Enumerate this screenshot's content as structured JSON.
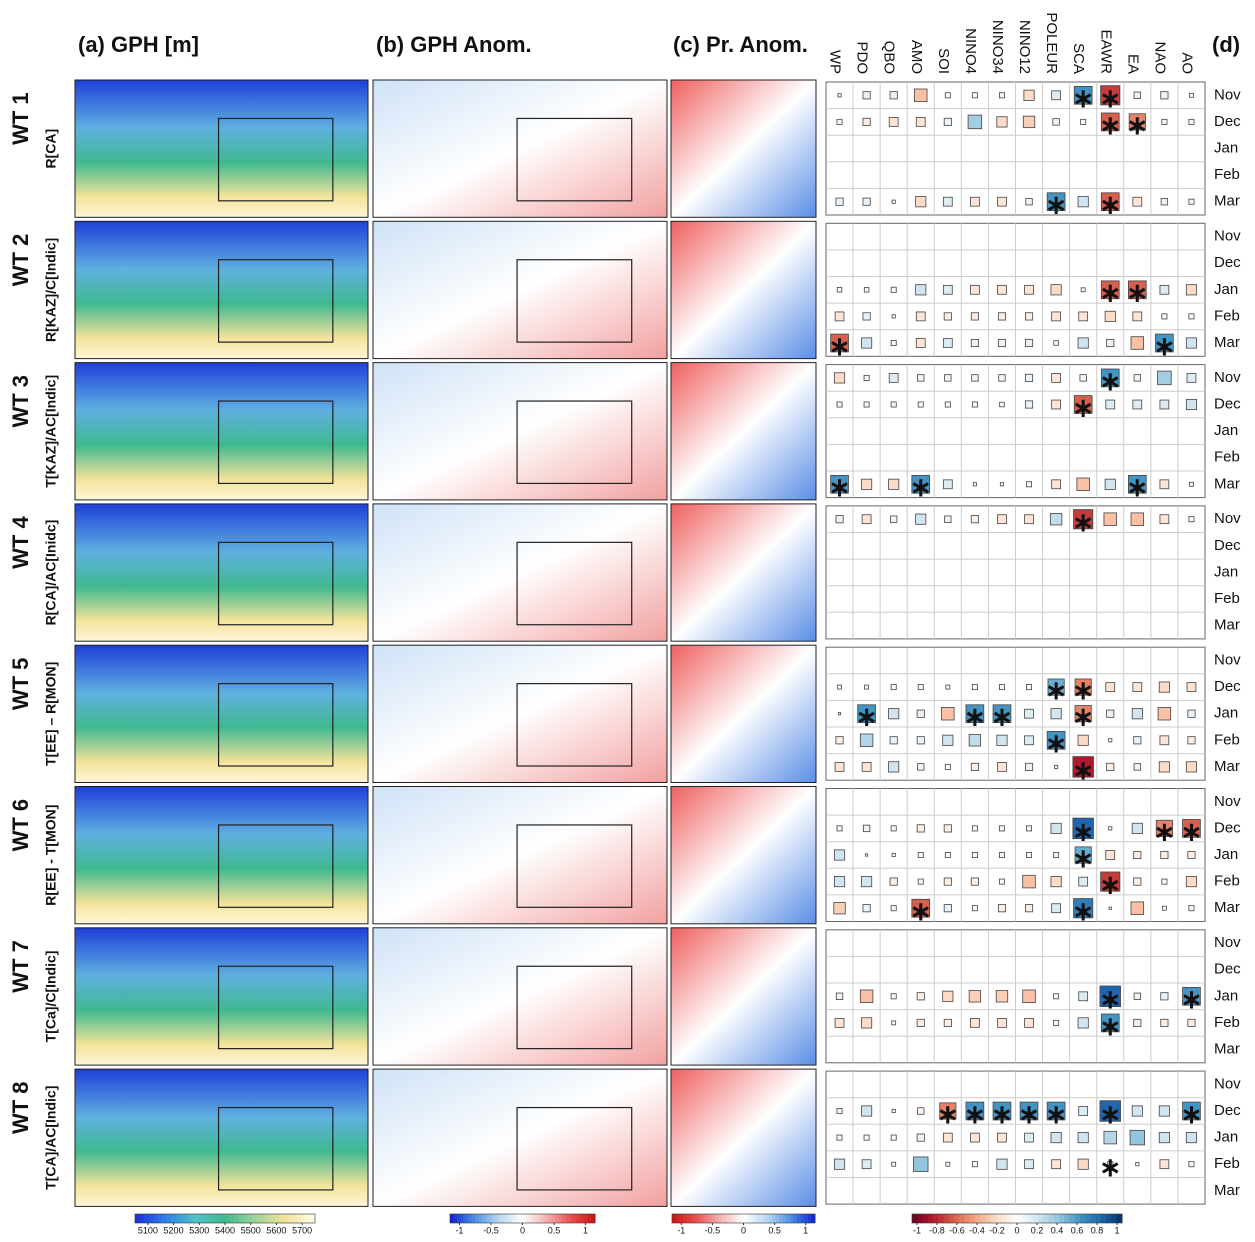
{
  "chart_data": {
    "type": "correlation-matrix",
    "panel_titles": [
      "(a) GPH [m]",
      "(b) GPH Anom.",
      "(c) Pr. Anom.",
      "(d)"
    ],
    "indices": [
      "WP",
      "PDO",
      "QBO",
      "AMO",
      "SOI",
      "NINO4",
      "NINO34",
      "NINO12",
      "POLEUR",
      "SCA",
      "EAWR",
      "EA",
      "NAO",
      "AO"
    ],
    "months": [
      "Nov",
      "Dec",
      "Jan",
      "Feb",
      "Mar"
    ],
    "weather_types": [
      {
        "name": "WT 1",
        "label": "R[CA]",
        "values": [
          [
            0.02,
            0.1,
            0.1,
            -0.3,
            0.05,
            0.05,
            0.05,
            -0.2,
            0.15,
            0.6,
            -0.7,
            0.08,
            0.1,
            0.03
          ],
          [
            0.05,
            -0.1,
            -0.15,
            -0.15,
            0.1,
            0.35,
            -0.2,
            -0.25,
            0.08,
            0.05,
            -0.6,
            -0.5,
            0.05,
            0.05
          ],
          null,
          null,
          [
            0.1,
            0.1,
            0.02,
            -0.2,
            0.15,
            -0.15,
            -0.15,
            0.08,
            0.6,
            0.2,
            -0.6,
            -0.15,
            0.08,
            0.05
          ]
        ],
        "significant": [
          [
            9,
            10
          ],
          [
            10,
            11
          ],
          [],
          [],
          [
            8,
            10
          ]
        ]
      },
      {
        "name": "WT 2",
        "label": "R[KAZ]/C[Indic]",
        "values": [
          null,
          null,
          [
            0.04,
            0.04,
            0.05,
            0.2,
            0.15,
            -0.15,
            -0.15,
            -0.15,
            -0.2,
            0.03,
            -0.6,
            -0.6,
            0.15,
            -0.2
          ],
          [
            -0.15,
            0.1,
            0.02,
            -0.15,
            -0.1,
            -0.1,
            -0.1,
            -0.1,
            -0.15,
            -0.15,
            -0.2,
            -0.15,
            0.05,
            0.05
          ],
          [
            -0.6,
            0.2,
            0.05,
            -0.15,
            0.15,
            0.1,
            0.1,
            0.1,
            0.04,
            0.2,
            0.1,
            -0.3,
            0.6,
            0.2
          ]
        ],
        "significant": [
          [],
          [],
          [
            10,
            11
          ],
          [],
          [
            0,
            12
          ]
        ]
      },
      {
        "name": "WT 3",
        "label": "T[KAZ]/AC[Indic]",
        "values": [
          [
            -0.2,
            0.05,
            0.15,
            0.08,
            0.08,
            0.08,
            0.08,
            0.1,
            -0.15,
            0.08,
            0.6,
            0.08,
            0.35,
            0.15
          ],
          [
            0.05,
            0.05,
            0.05,
            0.05,
            0.05,
            0.05,
            0.04,
            0.1,
            -0.15,
            -0.6,
            0.15,
            0.15,
            0.15,
            0.2
          ],
          null,
          null,
          [
            0.6,
            -0.2,
            -0.2,
            0.6,
            0.15,
            0.02,
            0.02,
            0.05,
            -0.15,
            -0.3,
            0.2,
            0.6,
            -0.15,
            0.03
          ]
        ],
        "significant": [
          [
            10
          ],
          [
            9
          ],
          [],
          [],
          [
            0,
            3,
            11
          ]
        ]
      },
      {
        "name": "WT 4",
        "label": "R[CA]/AC[Inidc]",
        "values": [
          [
            0.1,
            -0.15,
            0.08,
            0.2,
            0.08,
            -0.1,
            -0.15,
            -0.15,
            0.25,
            -0.7,
            -0.3,
            -0.3,
            -0.15,
            0.05
          ],
          null,
          null,
          null,
          null
        ],
        "significant": [
          [
            9
          ],
          [],
          [],
          [],
          []
        ]
      },
      {
        "name": "WT 5",
        "label": "T[EE] – R[MON]",
        "values": [
          null,
          [
            0.03,
            0.03,
            0.05,
            0.05,
            0.03,
            0.05,
            0.05,
            0.05,
            0.5,
            -0.5,
            -0.15,
            -0.15,
            -0.2,
            -0.15
          ],
          [
            0.01,
            0.6,
            0.2,
            0.1,
            -0.3,
            0.6,
            0.6,
            0.15,
            0.2,
            -0.5,
            0.1,
            0.2,
            -0.3,
            0.1
          ],
          [
            -0.1,
            0.3,
            0.1,
            0.1,
            0.2,
            0.25,
            0.2,
            0.15,
            0.6,
            -0.2,
            0.02,
            0.1,
            -0.15,
            -0.1
          ],
          [
            -0.15,
            -0.15,
            0.2,
            0.08,
            0.05,
            -0.1,
            -0.15,
            0.1,
            0.02,
            -0.8,
            -0.1,
            0.08,
            -0.2,
            -0.2
          ]
        ],
        "significant": [
          [],
          [
            8,
            9
          ],
          [
            1,
            5,
            6,
            9
          ],
          [
            8
          ],
          [
            9
          ]
        ]
      },
      {
        "name": "WT 6",
        "label": "R[EE] - T[MON]",
        "values": [
          null,
          [
            0.05,
            0.08,
            0.05,
            -0.1,
            -0.1,
            0.05,
            0.05,
            0.05,
            0.2,
            0.8,
            0.02,
            0.2,
            -0.5,
            -0.6
          ],
          [
            0.2,
            0.01,
            0.02,
            0.05,
            0.05,
            0.05,
            0.05,
            0.05,
            0.05,
            0.5,
            -0.15,
            -0.1,
            -0.1,
            -0.1
          ],
          [
            0.2,
            0.2,
            -0.1,
            0.05,
            -0.1,
            -0.1,
            0.05,
            -0.3,
            -0.2,
            0.15,
            -0.7,
            -0.1,
            0.05,
            -0.2
          ],
          [
            -0.25,
            0.1,
            0.05,
            -0.6,
            0.1,
            0.05,
            -0.1,
            -0.1,
            0.15,
            0.7,
            0.01,
            -0.3,
            0.03,
            0.05
          ]
        ],
        "significant": [
          [],
          [
            9,
            12,
            13
          ],
          [
            9
          ],
          [
            10
          ],
          [
            3,
            9
          ]
        ]
      },
      {
        "name": "WT 7",
        "label": "T[Ca]/C[Indic]",
        "values": [
          null,
          null,
          [
            0.08,
            -0.3,
            0.05,
            -0.1,
            -0.2,
            -0.25,
            -0.25,
            -0.3,
            0.05,
            0.15,
            0.8,
            0.08,
            0.1,
            0.6
          ],
          [
            -0.15,
            -0.2,
            0.03,
            -0.1,
            -0.1,
            -0.15,
            -0.15,
            -0.15,
            0.05,
            0.2,
            0.6,
            0.1,
            -0.1,
            -0.1
          ],
          null
        ],
        "significant": [
          [],
          [],
          [
            10,
            13
          ],
          [
            10
          ],
          []
        ]
      },
      {
        "name": "WT 8",
        "label": "T[CA]/AC[Indic]",
        "values": [
          null,
          [
            0.05,
            0.2,
            0.02,
            -0.08,
            -0.5,
            0.6,
            0.6,
            0.6,
            0.6,
            0.15,
            0.8,
            0.2,
            0.2,
            0.6
          ],
          [
            0.05,
            0.05,
            0.05,
            0.1,
            -0.15,
            -0.15,
            -0.15,
            0.15,
            0.2,
            0.2,
            0.3,
            0.4,
            0.2,
            0.2
          ],
          [
            0.2,
            0.15,
            0.03,
            0.4,
            0.03,
            0.05,
            0.2,
            0.15,
            -0.15,
            -0.2,
            0.05,
            0.02,
            -0.15,
            0.05
          ],
          null
        ],
        "significant": [
          [],
          [
            4,
            5,
            6,
            7,
            8,
            10,
            13
          ],
          [],
          [
            10
          ],
          []
        ]
      }
    ],
    "colorbars": [
      {
        "colors": [
          "#1a2fd6",
          "#2f7ee8",
          "#4fc2c8",
          "#3fb98f",
          "#9fd39a",
          "#f3e39a",
          "#fffbe6"
        ],
        "xlim": [
          5050,
          5750
        ],
        "xticks": [
          5100,
          5200,
          5300,
          5400,
          5500,
          5600,
          5700
        ]
      },
      {
        "colors": [
          "#1020d0",
          "#4a8fe0",
          "#b8d6f2",
          "#ffffff",
          "#f4b0b0",
          "#e85050",
          "#d01010"
        ],
        "xlim": [
          -1.15,
          1.15
        ],
        "xticks": [
          -1,
          -0.5,
          0,
          0.5,
          1
        ]
      },
      {
        "colors": [
          "#d01010",
          "#e85050",
          "#f4b0b0",
          "#ffffff",
          "#b8d6f2",
          "#4a8fe0",
          "#1020d0"
        ],
        "xlim": [
          -1.15,
          1.15
        ],
        "xticks": [
          -1,
          -0.5,
          0,
          0.5,
          1
        ]
      },
      {
        "colors": [
          "#67001f",
          "#b2182b",
          "#d6604d",
          "#f4a582",
          "#fddbc7",
          "#ffffff",
          "#d1e5f0",
          "#92c5de",
          "#4393c3",
          "#2166ac",
          "#053061"
        ],
        "xlim": [
          -1.05,
          1.05
        ],
        "xticks": [
          -1,
          -0.8,
          -0.6,
          -0.4,
          -0.2,
          0,
          0.2,
          0.4,
          0.6,
          0.8,
          1
        ]
      }
    ]
  }
}
